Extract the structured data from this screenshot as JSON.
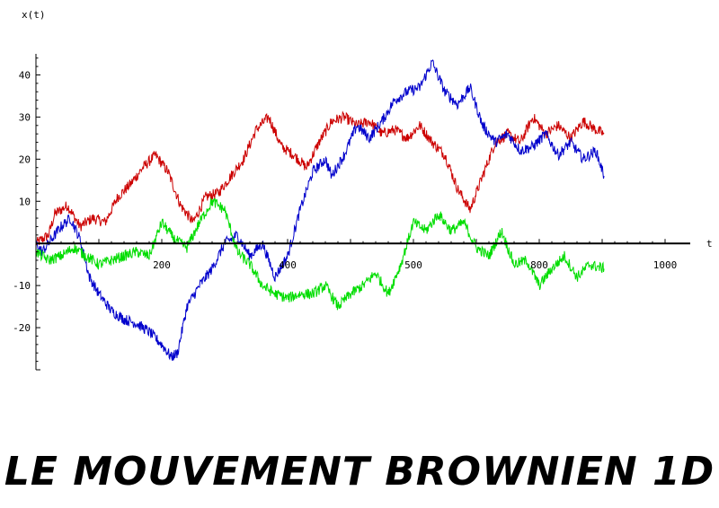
{
  "caption": "LE MOUVEMENT BROWNIEN 1D",
  "chart_data": {
    "type": "line",
    "title": "",
    "xlabel": "t",
    "ylabel": "x(t)",
    "xlim": [
      0,
      1040
    ],
    "ylim": [
      -30,
      45
    ],
    "x_ticks": [
      200,
      400,
      500,
      800,
      1000
    ],
    "y_ticks": [
      40,
      30,
      20,
      10,
      -10,
      -20
    ],
    "grid": false,
    "legend": "none",
    "series": [
      {
        "color": "#cc0000",
        "points": [
          [
            0,
            0
          ],
          [
            20,
            2
          ],
          [
            30,
            7
          ],
          [
            50,
            9
          ],
          [
            70,
            4
          ],
          [
            90,
            6
          ],
          [
            110,
            5
          ],
          [
            130,
            11
          ],
          [
            150,
            14
          ],
          [
            170,
            18
          ],
          [
            190,
            21
          ],
          [
            210,
            17
          ],
          [
            230,
            9
          ],
          [
            250,
            5
          ],
          [
            270,
            11
          ],
          [
            290,
            12
          ],
          [
            310,
            16
          ],
          [
            330,
            20
          ],
          [
            350,
            27
          ],
          [
            370,
            30
          ],
          [
            390,
            23
          ],
          [
            410,
            21
          ],
          [
            430,
            18
          ],
          [
            450,
            24
          ],
          [
            470,
            29
          ],
          [
            490,
            30
          ],
          [
            510,
            28
          ],
          [
            530,
            29
          ],
          [
            550,
            26
          ],
          [
            570,
            27
          ],
          [
            590,
            25
          ],
          [
            610,
            28
          ],
          [
            630,
            24
          ],
          [
            650,
            21
          ],
          [
            670,
            13
          ],
          [
            690,
            8
          ],
          [
            710,
            16
          ],
          [
            730,
            24
          ],
          [
            750,
            26
          ],
          [
            770,
            24
          ],
          [
            790,
            30
          ],
          [
            810,
            26
          ],
          [
            830,
            28
          ],
          [
            850,
            25
          ],
          [
            870,
            29
          ],
          [
            890,
            27
          ],
          [
            903,
            26
          ]
        ]
      },
      {
        "color": "#0000cc",
        "points": [
          [
            0,
            0
          ],
          [
            10,
            -2
          ],
          [
            25,
            1
          ],
          [
            40,
            4
          ],
          [
            55,
            6
          ],
          [
            70,
            1
          ],
          [
            85,
            -8
          ],
          [
            100,
            -12
          ],
          [
            120,
            -16
          ],
          [
            140,
            -18
          ],
          [
            160,
            -19
          ],
          [
            180,
            -21
          ],
          [
            200,
            -24
          ],
          [
            215,
            -27
          ],
          [
            225,
            -26
          ],
          [
            240,
            -15
          ],
          [
            260,
            -10
          ],
          [
            280,
            -6
          ],
          [
            300,
            0
          ],
          [
            320,
            2
          ],
          [
            340,
            -3
          ],
          [
            360,
            0
          ],
          [
            380,
            -8
          ],
          [
            400,
            -3
          ],
          [
            420,
            8
          ],
          [
            440,
            17
          ],
          [
            460,
            20
          ],
          [
            470,
            16
          ],
          [
            490,
            21
          ],
          [
            510,
            28
          ],
          [
            530,
            25
          ],
          [
            550,
            29
          ],
          [
            570,
            34
          ],
          [
            590,
            36
          ],
          [
            610,
            37
          ],
          [
            630,
            43
          ],
          [
            650,
            36
          ],
          [
            670,
            33
          ],
          [
            690,
            37
          ],
          [
            710,
            28
          ],
          [
            730,
            24
          ],
          [
            750,
            26
          ],
          [
            770,
            22
          ],
          [
            790,
            23
          ],
          [
            810,
            26
          ],
          [
            830,
            21
          ],
          [
            850,
            24
          ],
          [
            870,
            20
          ],
          [
            890,
            22
          ],
          [
            903,
            16
          ]
        ]
      },
      {
        "color": "#00dd00",
        "points": [
          [
            0,
            -2
          ],
          [
            20,
            -4
          ],
          [
            40,
            -3
          ],
          [
            60,
            -1
          ],
          [
            80,
            -3
          ],
          [
            100,
            -5
          ],
          [
            120,
            -4
          ],
          [
            140,
            -3
          ],
          [
            160,
            -2
          ],
          [
            180,
            -3
          ],
          [
            200,
            5
          ],
          [
            220,
            1
          ],
          [
            240,
            -1
          ],
          [
            260,
            5
          ],
          [
            280,
            10
          ],
          [
            300,
            8
          ],
          [
            320,
            -2
          ],
          [
            340,
            -5
          ],
          [
            360,
            -10
          ],
          [
            380,
            -12
          ],
          [
            400,
            -13
          ],
          [
            420,
            -12
          ],
          [
            440,
            -12
          ],
          [
            460,
            -10
          ],
          [
            480,
            -15
          ],
          [
            500,
            -12
          ],
          [
            520,
            -10
          ],
          [
            540,
            -7
          ],
          [
            560,
            -12
          ],
          [
            580,
            -5
          ],
          [
            600,
            5
          ],
          [
            620,
            3
          ],
          [
            640,
            7
          ],
          [
            660,
            3
          ],
          [
            680,
            5
          ],
          [
            700,
            -1
          ],
          [
            720,
            -3
          ],
          [
            740,
            3
          ],
          [
            760,
            -5
          ],
          [
            780,
            -4
          ],
          [
            800,
            -10
          ],
          [
            820,
            -6
          ],
          [
            840,
            -3
          ],
          [
            860,
            -8
          ],
          [
            880,
            -5
          ],
          [
            903,
            -6
          ]
        ]
      }
    ]
  }
}
